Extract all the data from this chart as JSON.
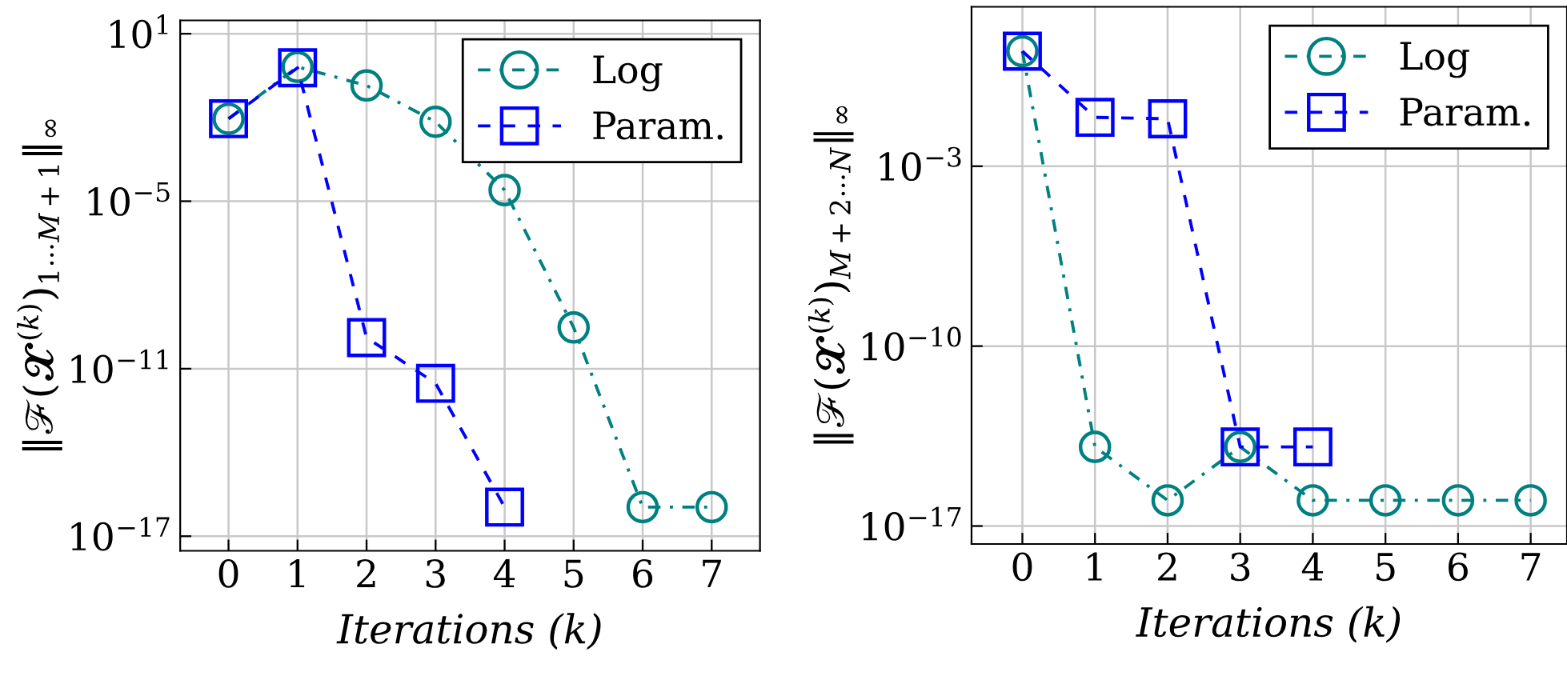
{
  "chart_data": [
    {
      "type": "line",
      "xlabel": "Iterations (k)",
      "ylabel": "‖ℱ(𝓧$^{(k)}$)$_{1⋯M+1}$‖$_{∞}$",
      "log": "y",
      "grid": true,
      "legend": "top right",
      "xlim": [
        -0.7,
        7.7
      ],
      "xticks": [
        0,
        1,
        2,
        3,
        4,
        5,
        6,
        7
      ],
      "ylim": [
        3e-18,
        30
      ],
      "yticks": [
        {
          "value": 10,
          "label": "10$^{1}$"
        },
        {
          "value": 1e-05,
          "label": "10$^{−5}$"
        },
        {
          "value": 1e-11,
          "label": "10$^{−11}$"
        },
        {
          "value": 1e-17,
          "label": "10$^{−17}$"
        }
      ],
      "series": [
        {
          "name": "Log",
          "color": "#008080",
          "marker": "circle",
          "line_style": "dashdot",
          "x": [
            0,
            1,
            2,
            3,
            4,
            5,
            6,
            7
          ],
          "values": [
            0.009,
            0.65,
            0.14,
            0.007,
            2.5e-05,
            3e-10,
            1.1e-16,
            1.1e-16
          ]
        },
        {
          "name": "Param.",
          "color": "#0000ff",
          "marker": "square",
          "line_style": "dashed",
          "x": [
            0,
            1,
            2,
            3,
            4
          ],
          "values": [
            0.009,
            0.6,
            1.3e-10,
            3e-12,
            1.1e-16
          ]
        }
      ]
    },
    {
      "type": "line",
      "xlabel": "Iterations (k)",
      "ylabel": "‖ℱ(𝓧$^{(k)}$)$_{M+2⋯N}$‖$_{∞}$",
      "log": "y",
      "grid": true,
      "legend": "top right",
      "xlim": [
        -0.7,
        7.5
      ],
      "xticks": [
        0,
        1,
        2,
        3,
        4,
        5,
        6,
        7
      ],
      "ylim": [
        2e-18,
        1600
      ],
      "yticks": [
        {
          "value": 0.001,
          "label": "10$^{−3}$"
        },
        {
          "value": 1e-10,
          "label": "10$^{−10}$"
        },
        {
          "value": 1e-17,
          "label": "10$^{−17}$"
        }
      ],
      "series": [
        {
          "name": "Log",
          "color": "#008080",
          "marker": "circle",
          "line_style": "dashdot",
          "x": [
            0,
            1,
            2,
            3,
            4,
            5,
            6,
            7
          ],
          "values": [
            30,
            1.2e-14,
            1e-16,
            1.2e-14,
            1e-16,
            1e-16,
            1e-16,
            1e-16
          ]
        },
        {
          "name": "Param.",
          "color": "#0000ff",
          "marker": "square",
          "line_style": "dashed",
          "x": [
            0,
            1,
            2,
            3,
            4
          ],
          "values": [
            30,
            0.08,
            0.07,
            1.2e-14,
            1.2e-14
          ]
        }
      ]
    }
  ]
}
